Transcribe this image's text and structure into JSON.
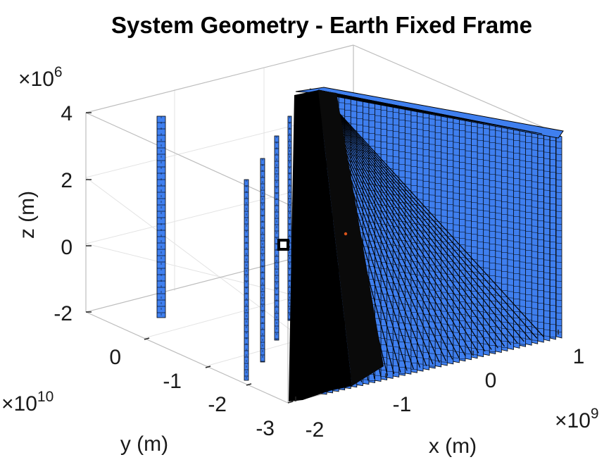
{
  "chart_data": {
    "type": "3d-surface-panels",
    "title": "System Geometry - Earth Fixed Frame",
    "xlabel": "x (m)",
    "ylabel": "y (m)",
    "zlabel": "z (m)",
    "x_multiplier": {
      "base": "×10",
      "exponent": "9"
    },
    "y_multiplier": {
      "base": "×10",
      "exponent": "10"
    },
    "z_multiplier": {
      "base": "×10",
      "exponent": "6"
    },
    "x_ticks": [
      "-2",
      "-1",
      "0",
      "1"
    ],
    "y_ticks": [
      "0",
      "-1",
      "-2",
      "-3"
    ],
    "z_ticks": [
      "4",
      "2",
      "0",
      "-2"
    ],
    "xlim": [
      -2,
      1
    ],
    "ylim": [
      -3,
      0.5
    ],
    "zlim": [
      -2,
      4
    ],
    "grid": true,
    "colors": {
      "panel_face": "#3f7fef",
      "panel_edge": "#000000",
      "marker": "#000000",
      "point": "#d95319"
    },
    "panel_count_fan": 40
  }
}
